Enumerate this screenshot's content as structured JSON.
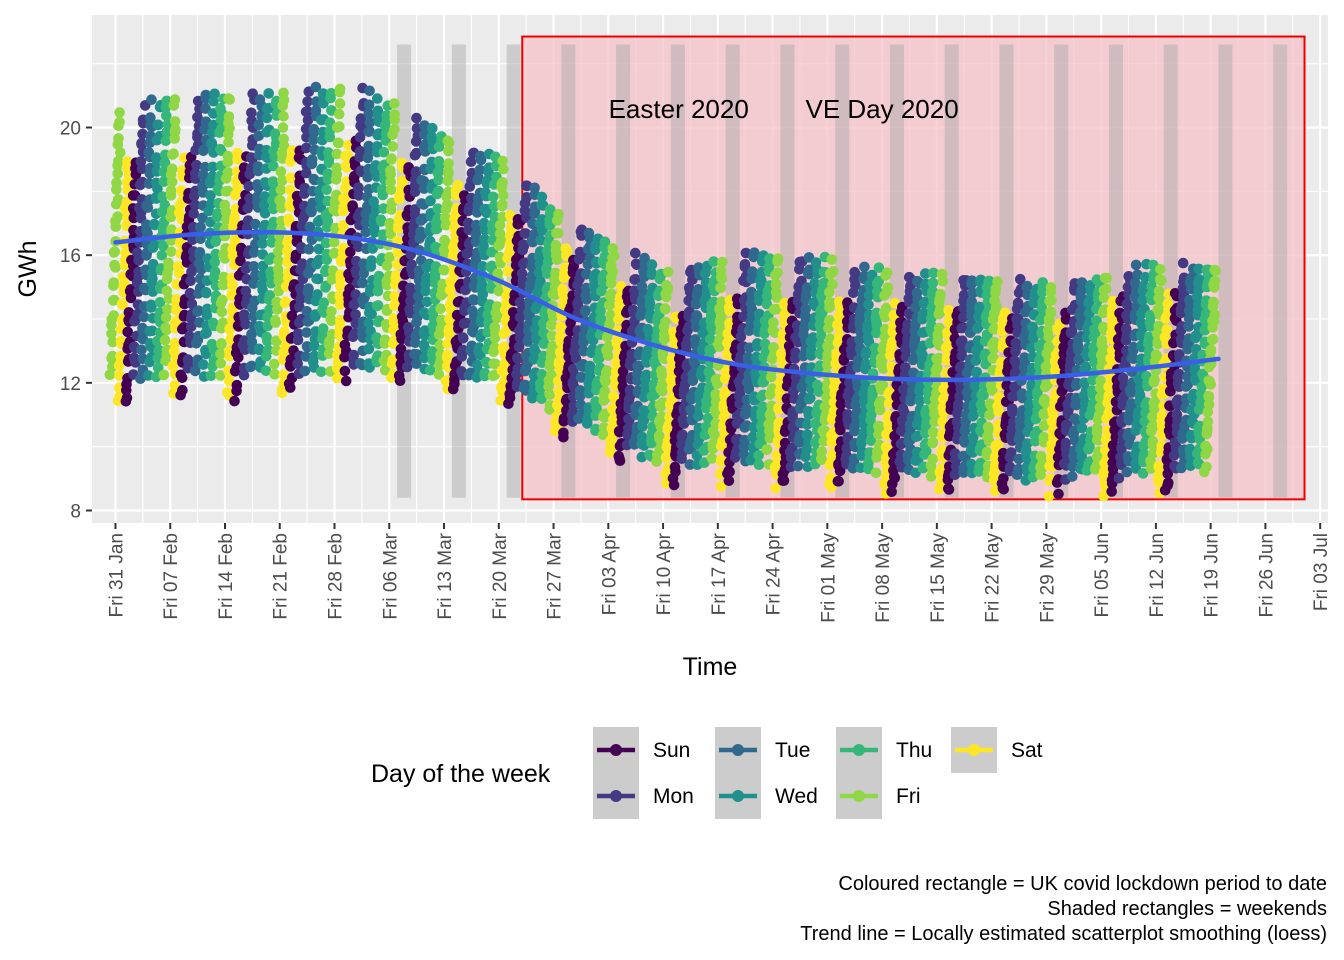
{
  "chart_data": {
    "type": "scatter",
    "title": "",
    "xlabel": "Time",
    "ylabel": "GWh",
    "ylim": [
      8,
      22.6
    ],
    "yticks": [
      8,
      12,
      16,
      20
    ],
    "x_range": [
      "2020-01-28",
      "2020-07-04"
    ],
    "x_ticks": [
      {
        "date": "2020-01-31",
        "label": "Fri 31 Jan"
      },
      {
        "date": "2020-02-07",
        "label": "Fri 07 Feb"
      },
      {
        "date": "2020-02-14",
        "label": "Fri 14 Feb"
      },
      {
        "date": "2020-02-21",
        "label": "Fri 21 Feb"
      },
      {
        "date": "2020-02-28",
        "label": "Fri 28 Feb"
      },
      {
        "date": "2020-03-06",
        "label": "Fri 06 Mar"
      },
      {
        "date": "2020-03-13",
        "label": "Fri 13 Mar"
      },
      {
        "date": "2020-03-20",
        "label": "Fri 20 Mar"
      },
      {
        "date": "2020-03-27",
        "label": "Fri 27 Mar"
      },
      {
        "date": "2020-04-03",
        "label": "Fri 03 Apr"
      },
      {
        "date": "2020-04-10",
        "label": "Fri 10 Apr"
      },
      {
        "date": "2020-04-17",
        "label": "Fri 17 Apr"
      },
      {
        "date": "2020-04-24",
        "label": "Fri 24 Apr"
      },
      {
        "date": "2020-05-01",
        "label": "Fri 01 May"
      },
      {
        "date": "2020-05-08",
        "label": "Fri 08 May"
      },
      {
        "date": "2020-05-15",
        "label": "Fri 15 May"
      },
      {
        "date": "2020-05-22",
        "label": "Fri 22 May"
      },
      {
        "date": "2020-05-29",
        "label": "Fri 29 May"
      },
      {
        "date": "2020-06-05",
        "label": "Fri 05 Jun"
      },
      {
        "date": "2020-06-12",
        "label": "Fri 12 Jun"
      },
      {
        "date": "2020-06-19",
        "label": "Fri 19 Jun"
      },
      {
        "date": "2020-06-26",
        "label": "Fri 26 Jun"
      },
      {
        "date": "2020-07-03",
        "label": "Fri 03 Jul"
      }
    ],
    "grid": true,
    "lockdown_period": {
      "start": "2020-03-23",
      "end": "2020-07-01",
      "ymin": 8.35,
      "ymax": 22.85,
      "fill": "#f4c2c8",
      "stroke": "#ee0000"
    },
    "weekends": [
      {
        "start": "2020-03-07",
        "end": "2020-03-08"
      },
      {
        "start": "2020-03-14",
        "end": "2020-03-15"
      },
      {
        "start": "2020-03-21",
        "end": "2020-03-22"
      },
      {
        "start": "2020-03-28",
        "end": "2020-03-29"
      },
      {
        "start": "2020-04-04",
        "end": "2020-04-05"
      },
      {
        "start": "2020-04-11",
        "end": "2020-04-12"
      },
      {
        "start": "2020-04-18",
        "end": "2020-04-19"
      },
      {
        "start": "2020-04-25",
        "end": "2020-04-26"
      },
      {
        "start": "2020-05-02",
        "end": "2020-05-03"
      },
      {
        "start": "2020-05-09",
        "end": "2020-05-10"
      },
      {
        "start": "2020-05-16",
        "end": "2020-05-17"
      },
      {
        "start": "2020-05-23",
        "end": "2020-05-24"
      },
      {
        "start": "2020-05-30",
        "end": "2020-05-31"
      },
      {
        "start": "2020-06-06",
        "end": "2020-06-07"
      },
      {
        "start": "2020-06-13",
        "end": "2020-06-14"
      },
      {
        "start": "2020-06-20",
        "end": "2020-06-21"
      },
      {
        "start": "2020-06-27",
        "end": "2020-06-28"
      }
    ],
    "weekend_ymin": 8.4,
    "weekend_ymax": 22.6,
    "annotations": [
      {
        "text": "Easter 2020",
        "date": "2020-04-12",
        "y": 20.3
      },
      {
        "text": "VE Day 2020",
        "date": "2020-05-08",
        "y": 20.3
      }
    ],
    "trend": {
      "name": "loess",
      "color": "#3a5fe6",
      "x": [
        "2020-01-31",
        "2020-02-10",
        "2020-02-20",
        "2020-03-01",
        "2020-03-10",
        "2020-03-20",
        "2020-03-30",
        "2020-04-10",
        "2020-04-20",
        "2020-05-01",
        "2020-05-10",
        "2020-05-20",
        "2020-05-30",
        "2020-06-10",
        "2020-06-20"
      ],
      "y": [
        16.4,
        16.65,
        16.72,
        16.55,
        16.1,
        15.2,
        14.0,
        13.1,
        12.55,
        12.25,
        12.12,
        12.1,
        12.2,
        12.45,
        12.75
      ]
    },
    "daily_range": {
      "x": [
        "2020-01-31",
        "2020-02-10",
        "2020-02-20",
        "2020-03-01",
        "2020-03-10",
        "2020-03-20",
        "2020-03-30",
        "2020-04-10",
        "2020-04-20",
        "2020-05-01",
        "2020-05-10",
        "2020-05-20",
        "2020-05-30",
        "2020-06-10",
        "2020-06-20"
      ],
      "weekday_min": [
        12.2,
        12.3,
        12.4,
        12.5,
        12.5,
        12.1,
        10.9,
        9.6,
        9.6,
        9.5,
        9.3,
        9.1,
        9.1,
        9.2,
        9.3
      ],
      "weekday_max": [
        20.5,
        21.0,
        21.0,
        21.3,
        20.0,
        18.8,
        16.8,
        15.4,
        16.0,
        15.8,
        15.3,
        15.3,
        15.0,
        15.6,
        15.6
      ],
      "weekend_min": [
        11.3,
        11.6,
        11.5,
        12.2,
        12.0,
        11.6,
        10.3,
        8.9,
        8.8,
        8.8,
        8.7,
        8.6,
        8.6,
        8.6,
        8.6
      ],
      "weekend_max": [
        18.9,
        19.0,
        19.2,
        19.5,
        18.5,
        17.5,
        15.8,
        14.2,
        14.5,
        14.6,
        14.4,
        14.2,
        14.0,
        14.8,
        14.8
      ]
    },
    "data_end": "2020-06-19",
    "legend": {
      "title": "Day of the week",
      "position": "bottom",
      "entries": [
        {
          "label": "Sun",
          "color": "#440154"
        },
        {
          "label": "Mon",
          "color": "#443a83"
        },
        {
          "label": "Tue",
          "color": "#31688e"
        },
        {
          "label": "Wed",
          "color": "#21908d"
        },
        {
          "label": "Thu",
          "color": "#35b779"
        },
        {
          "label": "Fri",
          "color": "#8fd744"
        },
        {
          "label": "Sat",
          "color": "#fde725"
        }
      ]
    },
    "caption": [
      "Coloured rectangle = UK covid lockdown period to date",
      "Shaded rectangles = weekends",
      "Trend line = Locally estimated scatterplot smoothing (loess)"
    ]
  }
}
